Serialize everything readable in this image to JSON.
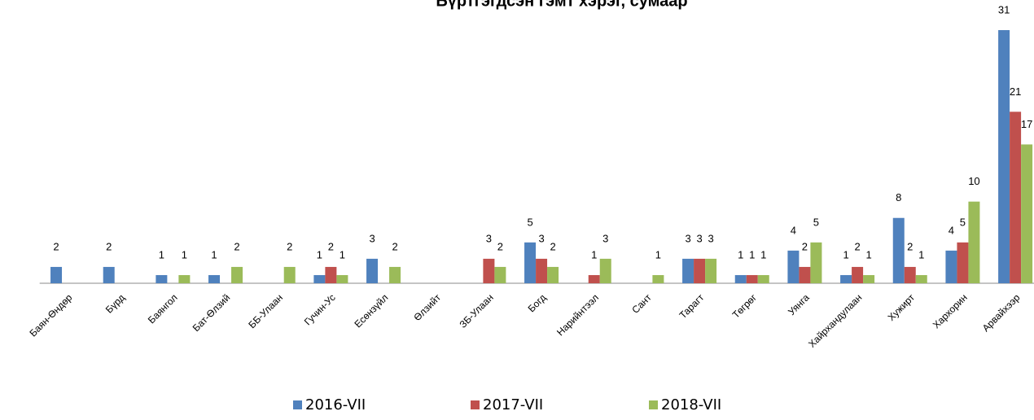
{
  "chart_data": {
    "type": "bar",
    "title": "Бүртгэгдсэн гэмт хэрэг, сумаар",
    "categories": [
      "Баян-Өндөр",
      "Бүрд",
      "Баянгол",
      "Бат-Өлзий",
      "ББ-Улаан",
      "Гучин-Ус",
      "Есөнзүйл",
      "Өлзийт",
      "ЗБ-Улаан",
      "Богд",
      "Нарийнтээл",
      "Сант",
      "Тарагт",
      "Төгрөг",
      "Уянга",
      "Хайрхандулаан",
      "Хужирт",
      "Хархорин",
      "Арвайхээр"
    ],
    "series": [
      {
        "name": "2016-VII",
        "color": "#4f81bd",
        "values": [
          2,
          2,
          1,
          1,
          null,
          1,
          3,
          null,
          null,
          5,
          null,
          null,
          3,
          1,
          4,
          1,
          8,
          4,
          31
        ]
      },
      {
        "name": "2017-VII",
        "color": "#c0504d",
        "values": [
          null,
          null,
          null,
          null,
          null,
          2,
          null,
          null,
          3,
          3,
          1,
          null,
          3,
          1,
          2,
          2,
          2,
          5,
          21
        ]
      },
      {
        "name": "2018-VII",
        "color": "#9bbb59",
        "values": [
          null,
          null,
          1,
          2,
          2,
          1,
          2,
          null,
          2,
          2,
          3,
          1,
          3,
          1,
          5,
          1,
          1,
          10,
          17
        ]
      }
    ],
    "legend": "bottom"
  }
}
